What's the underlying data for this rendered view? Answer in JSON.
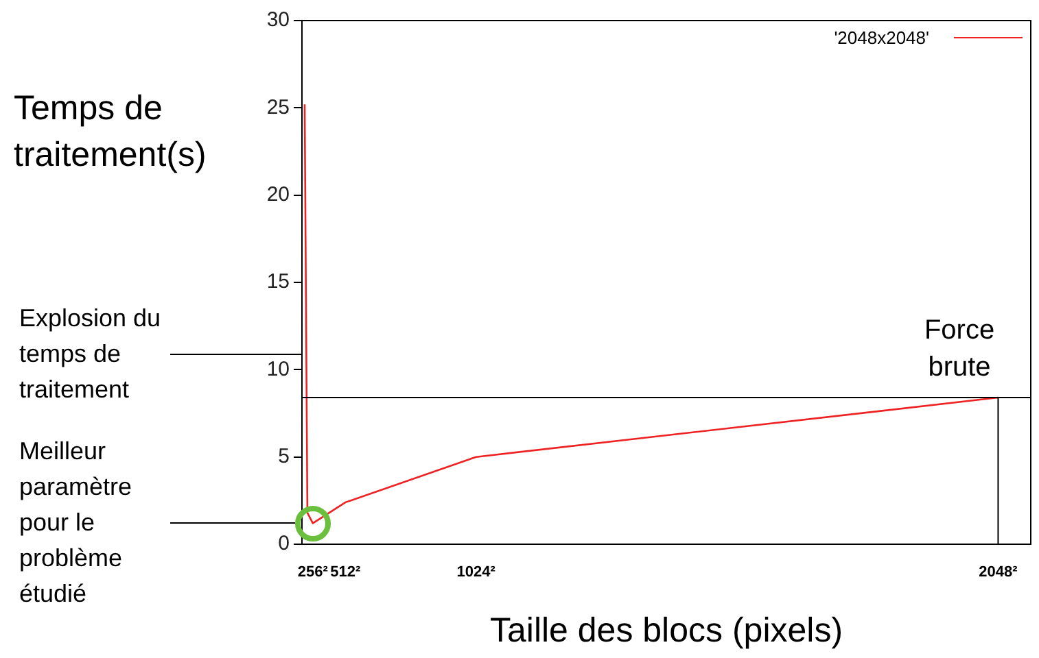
{
  "chart_data": {
    "type": "line",
    "xlabel": "Taille des blocs (pixels)",
    "ylabel": "Temps de traitement(s)",
    "categories": [
      null,
      null,
      null,
      null,
      "256²",
      null,
      null,
      null,
      null,
      null,
      null,
      null,
      null,
      null,
      null,
      null,
      "512²",
      null,
      null,
      null,
      null,
      null,
      null,
      null,
      null,
      null,
      null,
      null,
      null,
      null,
      null,
      null,
      null,
      null,
      null,
      null,
      null,
      null,
      null,
      null,
      null,
      null,
      null,
      null,
      null,
      null,
      null,
      null,
      null,
      null,
      null,
      null,
      null,
      null,
      null,
      null,
      null,
      null,
      null,
      null,
      null,
      null,
      null,
      null,
      "1024²",
      null,
      null,
      null,
      null,
      null,
      null,
      null,
      null,
      null,
      null,
      null,
      null,
      null,
      null,
      null,
      null,
      null,
      null,
      null,
      null,
      null,
      null,
      null,
      null,
      null,
      null,
      null,
      null,
      null,
      null,
      null,
      null,
      null,
      null,
      null,
      null,
      null,
      null,
      null,
      null,
      null,
      null,
      null,
      null,
      null,
      null,
      null,
      null,
      null,
      null,
      null,
      null,
      null,
      null,
      null,
      null,
      null,
      null,
      null,
      null,
      null,
      null,
      null,
      null,
      null,
      null,
      null,
      null,
      null,
      null,
      null,
      null,
      null,
      null,
      null,
      null,
      null,
      null,
      null,
      null,
      null,
      null,
      null,
      null,
      null,
      null,
      null,
      null,
      null,
      null,
      null,
      null,
      null,
      null,
      null,
      null,
      null,
      null,
      null,
      null,
      null,
      null,
      null,
      null,
      null,
      null,
      null,
      null,
      null,
      null,
      null,
      null,
      null,
      null,
      null,
      null,
      null,
      null,
      null,
      null,
      null,
      null,
      null,
      null,
      null,
      null,
      null,
      null,
      null,
      null,
      null,
      null,
      null,
      null,
      null,
      null,
      null,
      null,
      null,
      null,
      null,
      null,
      null,
      null,
      null,
      null,
      null,
      null,
      null,
      null,
      null,
      null,
      null,
      null,
      null,
      null,
      null,
      null,
      null,
      null,
      null,
      null,
      null,
      null,
      null,
      null,
      null,
      null,
      null,
      null,
      null,
      null,
      null,
      null,
      null,
      null,
      null,
      null,
      null,
      null,
      null,
      null,
      null,
      null,
      null,
      null,
      null,
      null,
      null,
      null,
      null,
      "2048²",
      null,
      null,
      null,
      null,
      null,
      null,
      null,
      null,
      null,
      null,
      null,
      null
    ],
    "series": [
      {
        "name": "'2048x2048'",
        "color": "#ee2222",
        "values": [
          null,
          25.2,
          1.8,
          null,
          1.2,
          null,
          null,
          null,
          null,
          null,
          null,
          null,
          null,
          null,
          null,
          null,
          2.4,
          null,
          null,
          null,
          null,
          null,
          null,
          null,
          null,
          null,
          null,
          null,
          null,
          null,
          null,
          null,
          null,
          null,
          null,
          null,
          null,
          null,
          null,
          null,
          null,
          null,
          null,
          null,
          null,
          null,
          null,
          null,
          null,
          null,
          null,
          null,
          null,
          null,
          null,
          null,
          null,
          null,
          null,
          null,
          null,
          null,
          null,
          null,
          5.0,
          null,
          null,
          null,
          null,
          null,
          null,
          null,
          null,
          null,
          null,
          null,
          null,
          null,
          null,
          null,
          null,
          null,
          null,
          null,
          null,
          null,
          null,
          null,
          null,
          null,
          null,
          null,
          null,
          null,
          null,
          null,
          null,
          null,
          null,
          null,
          null,
          null,
          null,
          null,
          null,
          null,
          null,
          null,
          null,
          null,
          null,
          null,
          null,
          null,
          null,
          null,
          null,
          null,
          null,
          null,
          null,
          null,
          null,
          null,
          null,
          null,
          null,
          null,
          null,
          null,
          null,
          null,
          null,
          null,
          null,
          null,
          null,
          null,
          null,
          null,
          null,
          null,
          null,
          null,
          null,
          null,
          null,
          null,
          null,
          null,
          null,
          null,
          null,
          null,
          null,
          null,
          null,
          null,
          null,
          null,
          null,
          null,
          null,
          null,
          null,
          null,
          null,
          null,
          null,
          null,
          null,
          null,
          null,
          null,
          null,
          null,
          null,
          null,
          null,
          null,
          null,
          null,
          null,
          null,
          null,
          null,
          null,
          null,
          null,
          null,
          null,
          null,
          null,
          null,
          null,
          null,
          null,
          null,
          null,
          null,
          null,
          null,
          null,
          null,
          null,
          null,
          null,
          null,
          null,
          null,
          null,
          null,
          null,
          null,
          null,
          null,
          null,
          null,
          null,
          null,
          null,
          null,
          null,
          null,
          null,
          null,
          null,
          null,
          null,
          null,
          null,
          null,
          null,
          null,
          null,
          null,
          null,
          null,
          null,
          null,
          null,
          null,
          null,
          null,
          null,
          null,
          null,
          null,
          null,
          null,
          null,
          null,
          null,
          null,
          null,
          null,
          8.4,
          null,
          null,
          null,
          null,
          null,
          null,
          null,
          null,
          null,
          null,
          null,
          null
        ]
      }
    ],
    "ylim": [
      0,
      30
    ],
    "yticks": [
      0,
      5,
      10,
      15,
      20,
      25,
      30
    ],
    "ref_lines": [
      {
        "axis": "y",
        "value": 8.4,
        "color": "#000000"
      }
    ],
    "annotations": [
      "Explosion du temps de traitement",
      "Meilleur paramètre pour le problème étudié",
      {
        "text": "Force brute",
        "x": "2048²",
        "y": 8.4
      }
    ],
    "grid": false,
    "legend": "top right",
    "marker": "none",
    "line_style": "solid"
  }
}
